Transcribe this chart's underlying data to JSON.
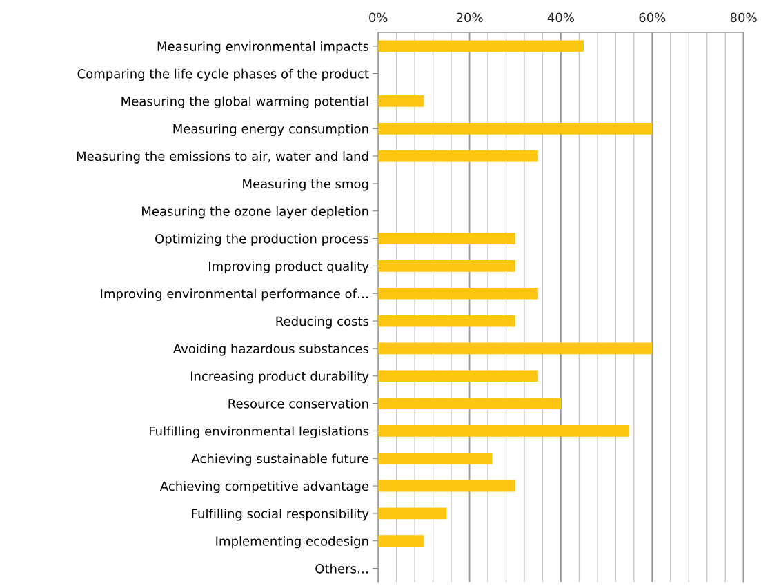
{
  "chart_data": {
    "type": "bar",
    "orientation": "horizontal",
    "categories": [
      "Measuring environmental impacts",
      "Comparing the life cycle phases of the product",
      "Measuring the global warming potential",
      "Measuring energy consumption",
      "Measuring the emissions to air, water and land",
      "Measuring the smog",
      "Measuring the ozone layer depletion",
      "Optimizing the production process",
      "Improving product quality",
      "Improving environmental performance of…",
      "Reducing costs",
      "Avoiding hazardous substances",
      "Increasing product durability",
      "Resource conservation",
      "Fulfilling environmental legislations",
      "Achieving sustainable future",
      "Achieving competitive advantage",
      "Fulfilling social responsibility",
      "Implementing ecodesign",
      "Others…"
    ],
    "values": [
      45,
      0,
      10,
      60,
      35,
      0,
      0,
      30,
      30,
      35,
      30,
      60,
      35,
      40,
      55,
      25,
      30,
      15,
      10,
      0
    ],
    "color": "#fcc612",
    "xlim": [
      0,
      80
    ],
    "xticks": [
      {
        "value": 0,
        "label": "0%"
      },
      {
        "value": 4,
        "label": null
      },
      {
        "value": 8,
        "label": null
      },
      {
        "value": 12,
        "label": null
      },
      {
        "value": 16,
        "label": null
      },
      {
        "value": 20,
        "label": "20%"
      },
      {
        "value": 24,
        "label": null
      },
      {
        "value": 28,
        "label": null
      },
      {
        "value": 32,
        "label": null
      },
      {
        "value": 36,
        "label": null
      },
      {
        "value": 40,
        "label": "40%"
      },
      {
        "value": 44,
        "label": null
      },
      {
        "value": 48,
        "label": null
      },
      {
        "value": 52,
        "label": null
      },
      {
        "value": 56,
        "label": null
      },
      {
        "value": 60,
        "label": "60%"
      },
      {
        "value": 64,
        "label": null
      },
      {
        "value": 68,
        "label": null
      },
      {
        "value": 72,
        "label": null
      },
      {
        "value": 76,
        "label": null
      },
      {
        "value": 80,
        "label": "80%"
      }
    ],
    "grid": "x"
  }
}
